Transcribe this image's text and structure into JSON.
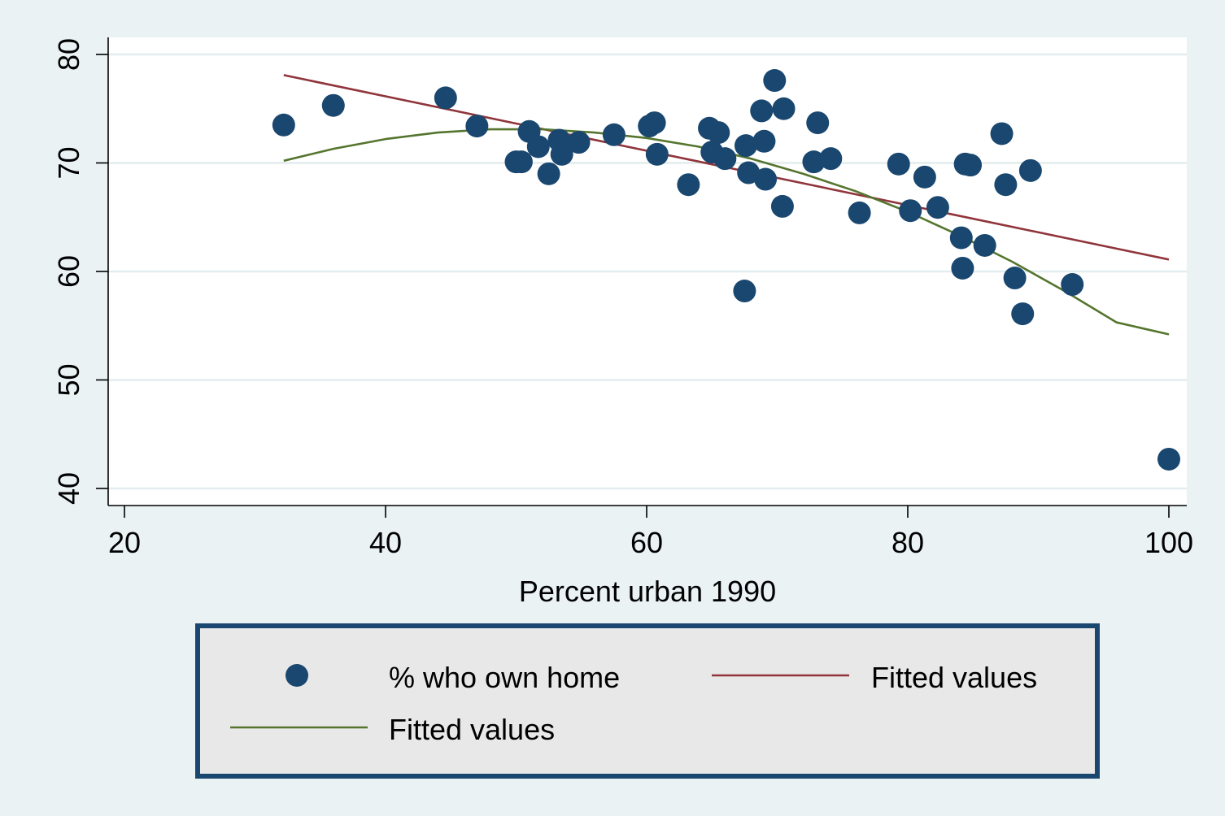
{
  "chart_data": {
    "type": "scatter",
    "xlabel": "Percent urban 1990",
    "ylabel": "",
    "xlim": [
      20,
      100
    ],
    "ylim": [
      40,
      80
    ],
    "x_ticks": [
      20,
      40,
      60,
      80,
      100
    ],
    "y_ticks": [
      40,
      50,
      60,
      70,
      80
    ],
    "grid": "horizontal",
    "legend_position": "bottom",
    "colors": {
      "background": "#eaf2f3",
      "plot_area": "#ffffff",
      "gridline": "#e3ecee",
      "points": "#1a476f",
      "linear_fit": "#90353b",
      "quadratic_fit": "#55752f",
      "legend_frame": "#1a476f",
      "legend_fill": "#e8e8e8"
    },
    "series": [
      {
        "name": "% who own home",
        "kind": "scatter",
        "points": [
          [
            32.2,
            73.5
          ],
          [
            36.0,
            75.3
          ],
          [
            44.6,
            76.0
          ],
          [
            47.0,
            73.4
          ],
          [
            50.0,
            70.1
          ],
          [
            50.4,
            70.1
          ],
          [
            51.0,
            72.9
          ],
          [
            51.7,
            71.5
          ],
          [
            52.5,
            69.0
          ],
          [
            53.3,
            72.1
          ],
          [
            53.5,
            70.8
          ],
          [
            54.8,
            71.9
          ],
          [
            57.5,
            72.6
          ],
          [
            60.2,
            73.4
          ],
          [
            60.6,
            73.7
          ],
          [
            60.8,
            70.8
          ],
          [
            63.2,
            68.0
          ],
          [
            64.8,
            73.2
          ],
          [
            65.0,
            71.0
          ],
          [
            65.5,
            72.8
          ],
          [
            66.0,
            70.4
          ],
          [
            67.5,
            58.2
          ],
          [
            67.6,
            71.6
          ],
          [
            67.8,
            69.1
          ],
          [
            68.8,
            74.8
          ],
          [
            69.0,
            72.0
          ],
          [
            69.1,
            68.5
          ],
          [
            69.8,
            77.6
          ],
          [
            70.4,
            66.0
          ],
          [
            70.5,
            75.0
          ],
          [
            72.8,
            70.1
          ],
          [
            73.1,
            73.7
          ],
          [
            74.1,
            70.4
          ],
          [
            76.3,
            65.4
          ],
          [
            79.3,
            69.9
          ],
          [
            80.2,
            65.6
          ],
          [
            81.3,
            68.7
          ],
          [
            82.3,
            65.9
          ],
          [
            84.1,
            63.1
          ],
          [
            84.2,
            60.3
          ],
          [
            84.4,
            69.9
          ],
          [
            84.8,
            69.8
          ],
          [
            85.9,
            62.4
          ],
          [
            87.2,
            72.7
          ],
          [
            87.5,
            68.0
          ],
          [
            88.2,
            59.4
          ],
          [
            88.8,
            56.1
          ],
          [
            89.4,
            69.3
          ],
          [
            92.6,
            58.8
          ],
          [
            100.0,
            42.7
          ]
        ]
      },
      {
        "name": "Fitted values",
        "kind": "linear_fit",
        "x": [
          32.2,
          100.0
        ],
        "y": [
          78.1,
          61.1
        ]
      },
      {
        "name": "Fitted values",
        "kind": "quadratic_fit",
        "x": [
          32.2,
          36,
          40,
          44,
          48,
          52,
          56,
          60,
          64,
          68,
          72,
          76,
          80,
          84,
          88,
          92,
          96,
          100
        ],
        "y": [
          70.2,
          71.3,
          72.2,
          72.8,
          73.1,
          73.1,
          72.8,
          72.3,
          71.5,
          70.4,
          69.0,
          67.4,
          65.5,
          63.3,
          60.9,
          58.2,
          55.3,
          54.2
        ]
      }
    ],
    "legend": [
      {
        "label": "% who own home",
        "kind": "marker"
      },
      {
        "label": "Fitted values",
        "kind": "linear_fit"
      },
      {
        "label": "Fitted values",
        "kind": "quadratic_fit"
      }
    ]
  }
}
